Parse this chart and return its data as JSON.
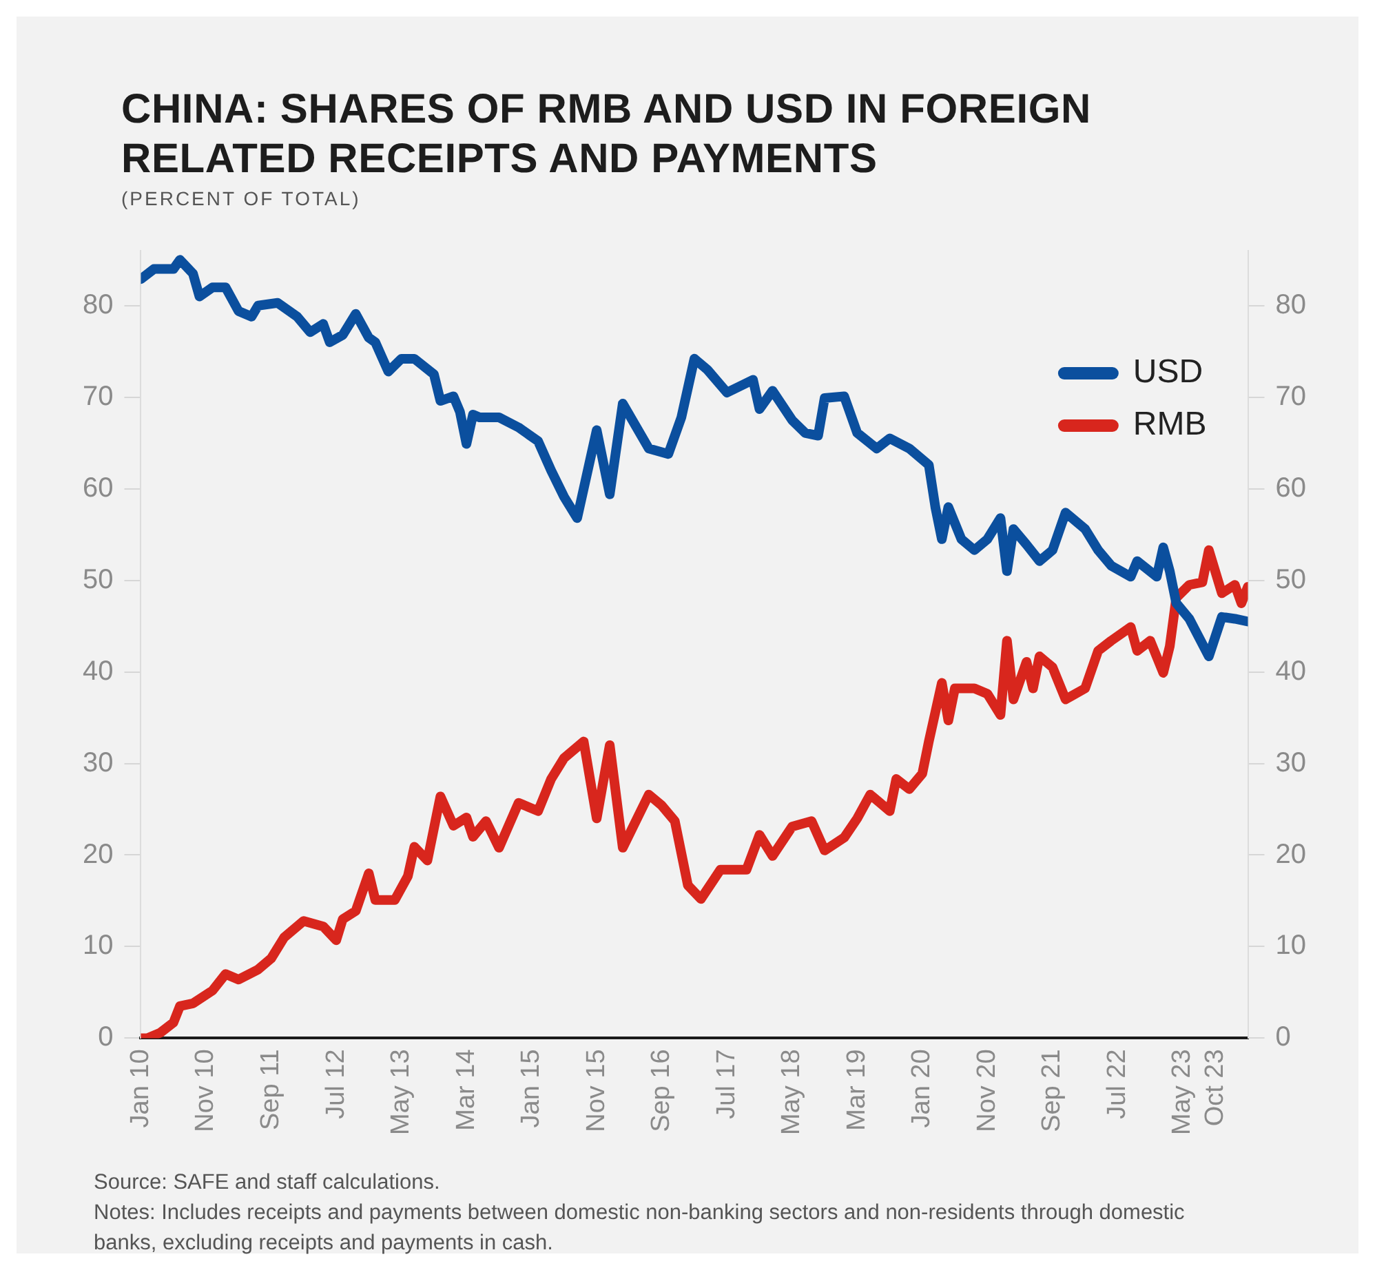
{
  "chart_data": {
    "type": "line",
    "title": "CHINA: SHARES OF RMB AND USD IN FOREIGN RELATED RECEIPTS AND PAYMENTS",
    "subtitle": "(PERCENT OF TOTAL)",
    "annotations": [
      "Source: SAFE and staff calculations.",
      "Notes: Includes receipts and payments between domestic non-banking sectors and non-residents through domestic banks, excluding receipts and payments in cash."
    ],
    "xlim": [
      "2010-01",
      "2024-03"
    ],
    "xticks": [
      {
        "value": "2010-01",
        "label": "Jan 10"
      },
      {
        "value": "2010-11",
        "label": "Nov 10"
      },
      {
        "value": "2011-09",
        "label": "Sep 11"
      },
      {
        "value": "2012-07",
        "label": "Jul 12"
      },
      {
        "value": "2013-05",
        "label": "May 13"
      },
      {
        "value": "2014-03",
        "label": "Mar 14"
      },
      {
        "value": "2015-01",
        "label": "Jan 15"
      },
      {
        "value": "2015-11",
        "label": "Nov 15"
      },
      {
        "value": "2016-09",
        "label": "Sep 16"
      },
      {
        "value": "2017-07",
        "label": "Jul 17"
      },
      {
        "value": "2018-05",
        "label": "May 18"
      },
      {
        "value": "2019-03",
        "label": "Mar 19"
      },
      {
        "value": "2020-01",
        "label": "Jan 20"
      },
      {
        "value": "2020-11",
        "label": "Nov 20"
      },
      {
        "value": "2021-09",
        "label": "Sep 21"
      },
      {
        "value": "2022-07",
        "label": "Jul 22"
      },
      {
        "value": "2023-05",
        "label": "May 23"
      },
      {
        "value": "2023-10",
        "label": "Oct 23"
      }
    ],
    "ylim": [
      0,
      86
    ],
    "yticks": [
      0,
      10,
      20,
      30,
      40,
      50,
      60,
      70,
      80
    ],
    "y2lim": [
      0,
      86
    ],
    "y2ticks": [
      0,
      10,
      20,
      30,
      40,
      50,
      60,
      70,
      80
    ],
    "grid": false,
    "legend": "top right",
    "marker": "none",
    "line_style": "solid",
    "series": [
      {
        "name": "USD",
        "color": "#0b4f9e",
        "x": [
          "2010-01",
          "2010-03",
          "2010-06",
          "2010-07",
          "2010-09",
          "2010-10",
          "2010-12",
          "2011-02",
          "2011-04",
          "2011-06",
          "2011-07",
          "2011-10",
          "2012-01",
          "2012-03",
          "2012-05",
          "2012-06",
          "2012-08",
          "2012-10",
          "2012-12",
          "2013-01",
          "2013-03",
          "2013-05",
          "2013-07",
          "2013-10",
          "2013-11",
          "2014-01",
          "2014-02",
          "2014-03",
          "2014-04",
          "2014-05",
          "2014-08",
          "2014-11",
          "2015-02",
          "2015-04",
          "2015-06",
          "2015-08",
          "2015-11",
          "2016-01",
          "2016-03",
          "2016-07",
          "2016-10",
          "2016-12",
          "2017-02",
          "2017-04",
          "2017-07",
          "2017-11",
          "2017-12",
          "2018-02",
          "2018-05",
          "2018-07",
          "2018-09",
          "2018-10",
          "2019-01",
          "2019-03",
          "2019-06",
          "2019-08",
          "2019-11",
          "2020-02",
          "2020-03",
          "2020-04",
          "2020-05",
          "2020-07",
          "2020-09",
          "2020-11",
          "2021-01",
          "2021-02",
          "2021-03",
          "2021-05",
          "2021-07",
          "2021-09",
          "2021-11",
          "2022-02",
          "2022-04",
          "2022-06",
          "2022-09",
          "2022-10",
          "2023-01",
          "2023-02",
          "2023-03",
          "2023-04",
          "2023-06",
          "2023-09",
          "2023-11",
          "2024-01",
          "2024-03"
        ],
        "values": [
          82.9,
          84,
          84,
          85,
          83.5,
          81,
          82,
          82,
          79.4,
          78.8,
          80,
          80.3,
          78.8,
          77.1,
          78,
          76,
          76.8,
          79.1,
          76.5,
          76,
          72.8,
          74.2,
          74.2,
          72.5,
          69.6,
          70.1,
          68.4,
          64.9,
          68.1,
          67.8,
          67.8,
          66.7,
          65.2,
          62,
          59.1,
          56.8,
          66.4,
          59.4,
          69.3,
          64.4,
          63.8,
          67.8,
          74.2,
          73,
          70.5,
          71.9,
          68.7,
          70.7,
          67.5,
          66.1,
          65.8,
          69.9,
          70.1,
          66.1,
          64.4,
          65.5,
          64.4,
          62.6,
          58,
          54.5,
          58,
          54.5,
          53.3,
          54.5,
          56.8,
          51,
          55.6,
          53.9,
          52.1,
          53.3,
          57.4,
          55.6,
          53.3,
          51.6,
          50.4,
          52.1,
          50.4,
          53.6,
          51,
          47.5,
          45.8,
          41.7,
          46,
          45.8,
          45.5
        ]
      },
      {
        "name": "RMB",
        "color": "#d8261d",
        "x": [
          "2010-01",
          "2010-02",
          "2010-04",
          "2010-06",
          "2010-07",
          "2010-09",
          "2010-12",
          "2011-02",
          "2011-04",
          "2011-07",
          "2011-09",
          "2011-11",
          "2012-02",
          "2012-05",
          "2012-07",
          "2012-08",
          "2012-10",
          "2012-12",
          "2013-01",
          "2013-04",
          "2013-06",
          "2013-07",
          "2013-09",
          "2013-11",
          "2014-01",
          "2014-03",
          "2014-04",
          "2014-06",
          "2014-08",
          "2014-11",
          "2015-02",
          "2015-04",
          "2015-06",
          "2015-09",
          "2015-11",
          "2016-01",
          "2016-03",
          "2016-07",
          "2016-09",
          "2016-11",
          "2017-01",
          "2017-03",
          "2017-06",
          "2017-10",
          "2017-12",
          "2018-02",
          "2018-05",
          "2018-08",
          "2018-10",
          "2019-01",
          "2019-03",
          "2019-05",
          "2019-08",
          "2019-09",
          "2019-11",
          "2020-01",
          "2020-02",
          "2020-04",
          "2020-05",
          "2020-06",
          "2020-09",
          "2020-11",
          "2021-01",
          "2021-02",
          "2021-03",
          "2021-05",
          "2021-06",
          "2021-07",
          "2021-09",
          "2021-11",
          "2022-02",
          "2022-04",
          "2022-06",
          "2022-09",
          "2022-10",
          "2022-12",
          "2023-02",
          "2023-03",
          "2023-04",
          "2023-06",
          "2023-08",
          "2023-09",
          "2023-11",
          "2024-01",
          "2024-02",
          "2024-03"
        ],
        "values": [
          0,
          0,
          0.6,
          1.7,
          3.5,
          3.8,
          5.2,
          7,
          6.4,
          7.5,
          8.7,
          11,
          12.8,
          12.2,
          10.7,
          13,
          13.9,
          18,
          15.1,
          15.1,
          17.7,
          20.9,
          19.4,
          26.4,
          23.2,
          24.1,
          22,
          23.7,
          20.8,
          25.7,
          24.8,
          28.3,
          30.6,
          32.4,
          24,
          32,
          20.8,
          26.6,
          25.4,
          23.7,
          16.7,
          15.2,
          18.4,
          18.4,
          22.2,
          19.9,
          23.1,
          23.7,
          20.5,
          21.9,
          24,
          26.6,
          24.8,
          28.3,
          27.2,
          28.9,
          32.4,
          38.8,
          34.7,
          38.2,
          38.2,
          37.6,
          35.3,
          43.4,
          37,
          41.1,
          38.2,
          41.7,
          40.5,
          37,
          38.2,
          42.3,
          43.4,
          44.9,
          42.3,
          43.4,
          39.9,
          42.8,
          48.1,
          49.5,
          49.8,
          53.3,
          48.6,
          49.5,
          47.5,
          49.3
        ]
      }
    ]
  }
}
